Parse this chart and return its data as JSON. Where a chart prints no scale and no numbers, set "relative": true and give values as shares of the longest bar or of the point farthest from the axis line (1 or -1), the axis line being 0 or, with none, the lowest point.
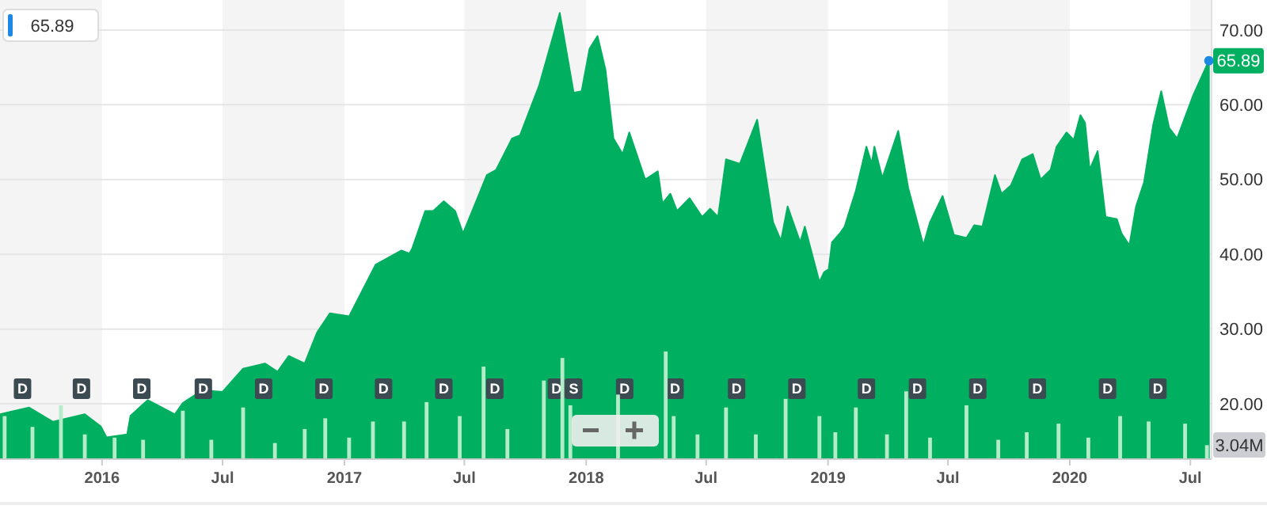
{
  "chart_data": [
    {
      "type": "area",
      "color": "#00b060",
      "xlim": [
        "2015-07-31",
        "2020-08-02"
      ],
      "ylim": [
        12.6,
        73.8
      ],
      "yticks": [
        {
          "value": 20,
          "label": "20.00"
        },
        {
          "value": 30,
          "label": "30.00"
        },
        {
          "value": 40,
          "label": "40.00"
        },
        {
          "value": 50,
          "label": "50.00"
        },
        {
          "value": 60,
          "label": "60.00"
        },
        {
          "value": 70,
          "label": "70.00"
        }
      ],
      "tick_labels": "y",
      "grid": "y",
      "bands": [
        {
          "axis": "x",
          "from": "2015-07-31",
          "to": "2016-01-01",
          "color": "#f4f4f4"
        },
        {
          "axis": "x",
          "from": "2016-07-01",
          "to": "2017-01-01",
          "color": "#f4f4f4"
        },
        {
          "axis": "x",
          "from": "2017-07-01",
          "to": "2018-01-01",
          "color": "#f4f4f4"
        },
        {
          "axis": "x",
          "from": "2018-07-01",
          "to": "2019-01-01",
          "color": "#f4f4f4"
        },
        {
          "axis": "x",
          "from": "2019-07-01",
          "to": "2020-01-01",
          "color": "#f4f4f4"
        },
        {
          "axis": "x",
          "from": "2020-07-01",
          "to": "2020-08-02",
          "color": "#f4f4f4"
        }
      ],
      "x": [
        "2015-07-31",
        "2015-09-13",
        "2015-10-19",
        "2015-12-06",
        "2015-12-30",
        "2016-01-08",
        "2016-02-08",
        "2016-02-13",
        "2016-03-10",
        "2016-04-20",
        "2016-05-02",
        "2016-05-31",
        "2016-07-01",
        "2016-08-01",
        "2016-09-03",
        "2016-09-22",
        "2016-10-09",
        "2016-11-02",
        "2016-11-21",
        "2016-12-10",
        "2017-01-08",
        "2017-02-17",
        "2017-03-28",
        "2017-04-09",
        "2017-04-13",
        "2017-05-03",
        "2017-05-15",
        "2017-05-31",
        "2017-06-17",
        "2017-06-29",
        "2017-07-13",
        "2017-08-04",
        "2017-08-18",
        "2017-09-11",
        "2017-09-23",
        "2017-10-22",
        "2017-11-22",
        "2017-12-13",
        "2017-12-25",
        "2018-01-06",
        "2018-01-18",
        "2018-01-30",
        "2018-02-11",
        "2018-02-25",
        "2018-03-07",
        "2018-03-31",
        "2018-04-19",
        "2018-04-26",
        "2018-05-08",
        "2018-05-18",
        "2018-06-06",
        "2018-06-25",
        "2018-07-07",
        "2018-07-19",
        "2018-07-31",
        "2018-08-21",
        "2018-09-16",
        "2018-10-10",
        "2018-10-22",
        "2018-11-01",
        "2018-11-20",
        "2018-11-27",
        "2018-12-19",
        "2018-12-26",
        "2019-01-02",
        "2019-01-07",
        "2019-01-19",
        "2019-01-26",
        "2019-02-12",
        "2019-02-28",
        "2019-03-08",
        "2019-03-12",
        "2019-03-24",
        "2019-04-17",
        "2019-05-02",
        "2019-05-25",
        "2019-06-04",
        "2019-06-23",
        "2019-07-10",
        "2019-07-29",
        "2019-08-10",
        "2019-08-22",
        "2019-09-10",
        "2019-09-20",
        "2019-10-04",
        "2019-10-21",
        "2019-11-06",
        "2019-11-18",
        "2019-12-03",
        "2019-12-12",
        "2019-12-27",
        "2020-01-07",
        "2020-01-17",
        "2020-01-24",
        "2020-01-31",
        "2020-02-12",
        "2020-02-24",
        "2020-03-12",
        "2020-03-19",
        "2020-03-31",
        "2020-04-10",
        "2020-04-22",
        "2020-05-06",
        "2020-05-18",
        "2020-05-30",
        "2020-06-11",
        "2020-07-05",
        "2020-07-29"
      ],
      "values": [
        18.6,
        19.5,
        17.6,
        18.6,
        17.0,
        15.5,
        15.9,
        18.4,
        20.5,
        18.6,
        20.1,
        21.8,
        21.6,
        24.7,
        25.4,
        24.3,
        26.4,
        25.4,
        29.6,
        32.1,
        31.7,
        38.6,
        40.5,
        40.1,
        40.7,
        45.8,
        45.8,
        47.1,
        45.8,
        42.8,
        45.8,
        50.6,
        51.3,
        55.5,
        55.9,
        62.6,
        72.3,
        61.6,
        61.8,
        67.5,
        69.2,
        64.7,
        55.5,
        53.4,
        56.3,
        50.0,
        51.1,
        46.8,
        48.1,
        45.8,
        47.5,
        45.0,
        46.1,
        45.0,
        52.7,
        52.1,
        58.0,
        44.3,
        41.8,
        46.4,
        41.6,
        43.7,
        36.3,
        37.6,
        38.0,
        41.6,
        42.8,
        43.7,
        48.5,
        54.4,
        52.1,
        54.4,
        50.2,
        56.5,
        48.9,
        41.2,
        44.3,
        47.8,
        42.6,
        42.2,
        43.9,
        43.7,
        50.6,
        48.1,
        49.2,
        52.7,
        53.4,
        50.0,
        51.3,
        54.4,
        56.3,
        55.3,
        58.6,
        57.6,
        51.3,
        53.8,
        45.0,
        44.7,
        42.8,
        41.2,
        46.4,
        49.6,
        57.4,
        61.8,
        56.9,
        55.5,
        61.2,
        65.89
      ],
      "annotations": [
        "65.89",
        {
          "text": "65.89",
          "x": "2020-07-29",
          "y": 65.89
        },
        {
          "text": "D",
          "x": "2015-09-03"
        },
        {
          "text": "D",
          "x": "2015-12-01"
        },
        {
          "text": "D",
          "x": "2016-03-01"
        },
        {
          "text": "D",
          "x": "2016-06-02"
        },
        {
          "text": "D",
          "x": "2016-09-01"
        },
        {
          "text": "D",
          "x": "2016-12-01"
        },
        {
          "text": "D",
          "x": "2017-03-01"
        },
        {
          "text": "D",
          "x": "2017-05-31"
        },
        {
          "text": "D",
          "x": "2017-08-16"
        },
        {
          "text": "D",
          "x": "2017-11-17"
        },
        {
          "text": "S",
          "x": "2017-12-13"
        },
        {
          "text": "D",
          "x": "2018-02-28"
        },
        {
          "text": "D",
          "x": "2018-05-15"
        },
        {
          "text": "D",
          "x": "2018-08-16"
        },
        {
          "text": "D",
          "x": "2018-11-15"
        },
        {
          "text": "D",
          "x": "2019-02-28"
        },
        {
          "text": "D",
          "x": "2019-05-16"
        },
        {
          "text": "D",
          "x": "2019-08-15"
        },
        {
          "text": "D",
          "x": "2019-11-13"
        },
        {
          "text": "D",
          "x": "2020-02-27"
        },
        {
          "text": "D",
          "x": "2020-05-13"
        }
      ]
    },
    {
      "type": "bar",
      "relative": true,
      "color": "#b4ecca",
      "xlim": [
        "2015-07-31",
        "2020-08-02"
      ],
      "tick_labels": "x",
      "xticks": [
        {
          "value": "2016-01-01",
          "label": "2016"
        },
        {
          "value": "2016-07-01",
          "label": "Jul"
        },
        {
          "value": "2017-01-01",
          "label": "2017"
        },
        {
          "value": "2017-07-01",
          "label": "Jul"
        },
        {
          "value": "2018-01-01",
          "label": "2018"
        },
        {
          "value": "2018-07-01",
          "label": "Jul"
        },
        {
          "value": "2019-01-01",
          "label": "2019"
        },
        {
          "value": "2019-07-01",
          "label": "Jul"
        },
        {
          "value": "2020-01-01",
          "label": "2020"
        },
        {
          "value": "2020-07-01",
          "label": "Jul"
        }
      ],
      "x": [
        "2015-08-07",
        "2015-09-18",
        "2015-10-31",
        "2015-12-06",
        "2016-01-20",
        "2016-03-03",
        "2016-05-02",
        "2016-06-14",
        "2016-08-01",
        "2016-09-18",
        "2016-11-02",
        "2016-12-03",
        "2017-01-08",
        "2017-02-13",
        "2017-04-01",
        "2017-05-05",
        "2017-06-24",
        "2017-07-30",
        "2017-09-04",
        "2017-10-29",
        "2017-11-26",
        "2017-12-08",
        "2018-02-01",
        "2018-02-18",
        "2018-04-02",
        "2018-05-01",
        "2018-05-13",
        "2018-06-18",
        "2018-07-31",
        "2018-09-14",
        "2018-10-29",
        "2018-12-19",
        "2019-01-12",
        "2019-02-12",
        "2019-03-31",
        "2019-04-29",
        "2019-06-04",
        "2019-07-29",
        "2019-09-15",
        "2019-10-28",
        "2019-12-15",
        "2020-01-29",
        "2020-03-17",
        "2020-04-29",
        "2020-06-23",
        "2020-07-26"
      ],
      "values": [
        0.4,
        0.3,
        0.5,
        0.23,
        0.2,
        0.18,
        0.45,
        0.18,
        0.48,
        0.15,
        0.28,
        0.38,
        0.2,
        0.35,
        0.35,
        0.53,
        0.4,
        0.86,
        0.28,
        0.73,
        0.94,
        0.5,
        null,
        0.6,
        null,
        1.0,
        0.4,
        0.23,
        0.48,
        0.23,
        0.56,
        0.4,
        0.25,
        0.48,
        0.23,
        0.63,
        0.2,
        0.5,
        0.18,
        0.25,
        0.33,
        0.2,
        0.4,
        0.35,
        0.33,
        0.13
      ],
      "annotations": [
        "3.04M"
      ]
    }
  ]
}
